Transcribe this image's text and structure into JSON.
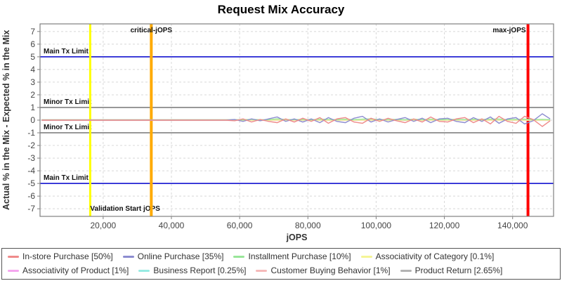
{
  "chart_data": {
    "type": "line",
    "title": "Request Mix Accuracy",
    "xlabel": "jOPS",
    "ylabel": "Actual % in the Mix - Expected % in the Mix",
    "xlim": [
      1500,
      152000
    ],
    "ylim": [
      -7.6,
      7.6
    ],
    "grid": "dashed",
    "legend_position": "bottom",
    "x_ticks": [
      {
        "value": 20000,
        "label": "20,000"
      },
      {
        "value": 40000,
        "label": "40,000"
      },
      {
        "value": 60000,
        "label": "60,000"
      },
      {
        "value": 80000,
        "label": "80,000"
      },
      {
        "value": 100000,
        "label": "100,000"
      },
      {
        "value": 120000,
        "label": "120,000"
      },
      {
        "value": 140000,
        "label": "140,000"
      }
    ],
    "y_ticks": [
      {
        "value": 7,
        "label": "7"
      },
      {
        "value": 6,
        "label": "6"
      },
      {
        "value": 5,
        "label": "5"
      },
      {
        "value": 4,
        "label": "4"
      },
      {
        "value": 3,
        "label": "3"
      },
      {
        "value": 2,
        "label": "2"
      },
      {
        "value": 1,
        "label": "1"
      },
      {
        "value": 0,
        "label": "0"
      },
      {
        "value": -1,
        "label": "-1"
      },
      {
        "value": -2,
        "label": "-2"
      },
      {
        "value": -3,
        "label": "-3"
      },
      {
        "value": -4,
        "label": "-4"
      },
      {
        "value": -5,
        "label": "-5"
      },
      {
        "value": -6,
        "label": "-6"
      },
      {
        "value": -7,
        "label": "-7"
      }
    ],
    "h_markers": [
      {
        "y": 5,
        "color": "#0000cc",
        "label": "Main Tx Limit"
      },
      {
        "y": 1,
        "color": "#777777",
        "label": "Minor Tx Limit"
      },
      {
        "y": -1,
        "color": "#777777",
        "label": "Minor Tx Limit"
      },
      {
        "y": -5,
        "color": "#0000cc",
        "label": "Main Tx Limit"
      }
    ],
    "v_markers": [
      {
        "x": 16200,
        "color": "#ffff00",
        "width": 3,
        "label": "Validation Start jOPS",
        "label_pos": "bottom-right"
      },
      {
        "x": 34100,
        "color": "#ffaa00",
        "width": 4,
        "label": "critical-jOPS",
        "label_pos": "top-center"
      },
      {
        "x": 144500,
        "color": "#ff0000",
        "width": 4,
        "label": "max-jOPS",
        "label_pos": "top-left"
      }
    ],
    "x": [
      2000,
      10000,
      20000,
      30000,
      40000,
      50000,
      56000,
      58500,
      61000,
      63500,
      66000,
      68500,
      71000,
      73500,
      76000,
      78500,
      81000,
      83500,
      86000,
      88500,
      91000,
      93500,
      96000,
      98500,
      101000,
      103500,
      106000,
      108500,
      111000,
      113500,
      116000,
      118500,
      121000,
      123500,
      126000,
      128500,
      131000,
      133500,
      136000,
      138500,
      141000,
      143500,
      146000,
      148700,
      151000
    ],
    "series": [
      {
        "name": "in-store-purchase",
        "label": "In-store Purchase [50%]",
        "color": "#ef8a8a",
        "values": [
          0,
          0,
          0,
          0,
          0,
          0,
          0,
          -0.05,
          0.1,
          -0.15,
          0.05,
          -0.1,
          -0.2,
          0.1,
          -0.15,
          0.15,
          -0.1,
          0.2,
          -0.25,
          0.1,
          0.2,
          -0.15,
          -0.25,
          0.15,
          -0.1,
          0.15,
          -0.05,
          -0.2,
          0.1,
          -0.15,
          0.25,
          -0.1,
          -0.15,
          0.1,
          0.2,
          -0.2,
          0.1,
          -0.3,
          0.3,
          -0.1,
          -0.25,
          0.3,
          0.05,
          -0.5,
          -0.05
        ]
      },
      {
        "name": "online-purchase",
        "label": "Online Purchase [35%]",
        "color": "#8c8cd0",
        "values": [
          0,
          0,
          0,
          0,
          0,
          0,
          0,
          0.05,
          -0.1,
          0.1,
          -0.05,
          0.1,
          0.25,
          -0.1,
          0.1,
          -0.15,
          0.1,
          -0.2,
          0.2,
          -0.1,
          -0.2,
          0.15,
          0.3,
          -0.15,
          0.1,
          -0.15,
          0.05,
          0.2,
          -0.1,
          0.15,
          -0.2,
          0.1,
          0.15,
          -0.1,
          -0.2,
          0.2,
          -0.1,
          0.25,
          -0.25,
          0.1,
          0.2,
          -0.3,
          -0.05,
          0.5,
          0.1
        ]
      },
      {
        "name": "installment-purchase",
        "label": "Installment Purchase [10%]",
        "color": "#98e698",
        "values": [
          0.03,
          0.03,
          0.03,
          0.03,
          0.03,
          0.03,
          0.03,
          0.04,
          0.03,
          0.06,
          0.03,
          0.04,
          0.1,
          0.05,
          0.04,
          0.06,
          0.03,
          0.08,
          0.05,
          0.04,
          0.07,
          0.04,
          0.08,
          0.1,
          0.04,
          0.05,
          0.06,
          0.03,
          0.07,
          0.04,
          0.08,
          0.04,
          0.05,
          0.06,
          0.04,
          0.07,
          0.05,
          0.08,
          0.09,
          0.04,
          0.06,
          0.08,
          0.04,
          0.06,
          0.04
        ]
      },
      {
        "name": "associativity-of-category",
        "label": "Associativity of Category [0.1%]",
        "color": "#f5f596",
        "values": 0
      },
      {
        "name": "associativity-of-product",
        "label": "Associativity of Product [1%]",
        "color": "#f5a6ef",
        "values": 0
      },
      {
        "name": "business-report",
        "label": "Business Report [0.25%]",
        "color": "#97ebe3",
        "values": 0
      },
      {
        "name": "customer-buying-behavior",
        "label": "Customer Buying Behavior [1%]",
        "color": "#f6baba",
        "values": -0.02
      },
      {
        "name": "product-return",
        "label": "Product Return [2.65%]",
        "color": "#b3b3b3",
        "values": 0.01
      }
    ]
  },
  "style": {
    "grid_color": "#d8d8d8",
    "border_color": "#808080",
    "tick_label_color": "#444444",
    "annotation_color": "#111111"
  }
}
